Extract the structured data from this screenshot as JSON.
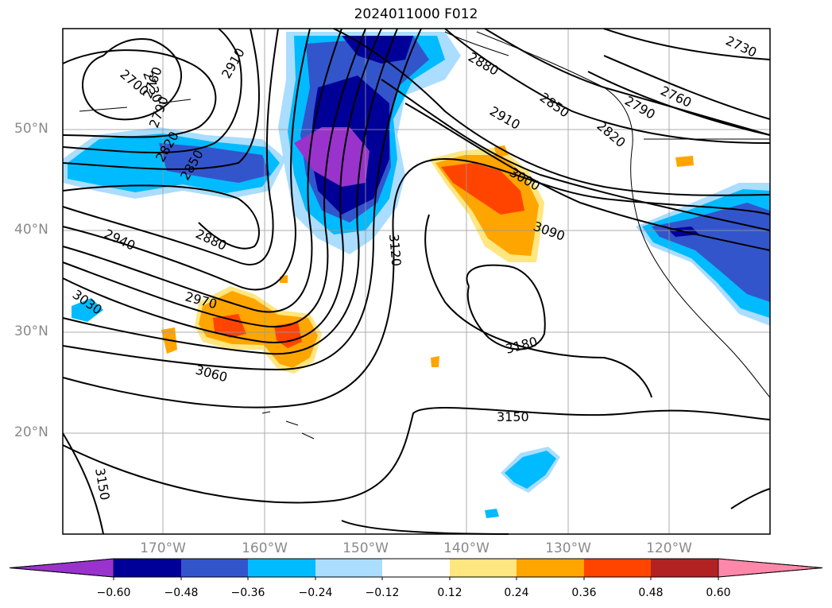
{
  "title": "2024011000 F012",
  "lat_labels": [
    "50°N",
    "40°N",
    "30°N",
    "20°N"
  ],
  "lon_labels": [
    "170°W",
    "160°W",
    "150°W",
    "140°W",
    "130°W",
    "120°W"
  ],
  "contour_labels": [
    "2700",
    "2730",
    "2760",
    "2790",
    "2820",
    "2850",
    "2880",
    "2910",
    "2940",
    "2970",
    "3000",
    "3030",
    "3060",
    "3090",
    "3120",
    "3150",
    "3180",
    "2730",
    "2760",
    "2790",
    "2820",
    "2850",
    "2880",
    "2910",
    "3150"
  ],
  "colorbar": {
    "ticks": [
      "−0.60",
      "−0.48",
      "−0.36",
      "−0.24",
      "−0.12",
      "0.12",
      "0.24",
      "0.36",
      "0.48",
      "0.60"
    ],
    "colors": [
      "#9933cc",
      "#000099",
      "#3355cc",
      "#00bbff",
      "#aaddff",
      "#ffffff",
      "#ffe680",
      "#ffa500",
      "#ff4400",
      "#b22222",
      "#ff88aa"
    ]
  }
}
